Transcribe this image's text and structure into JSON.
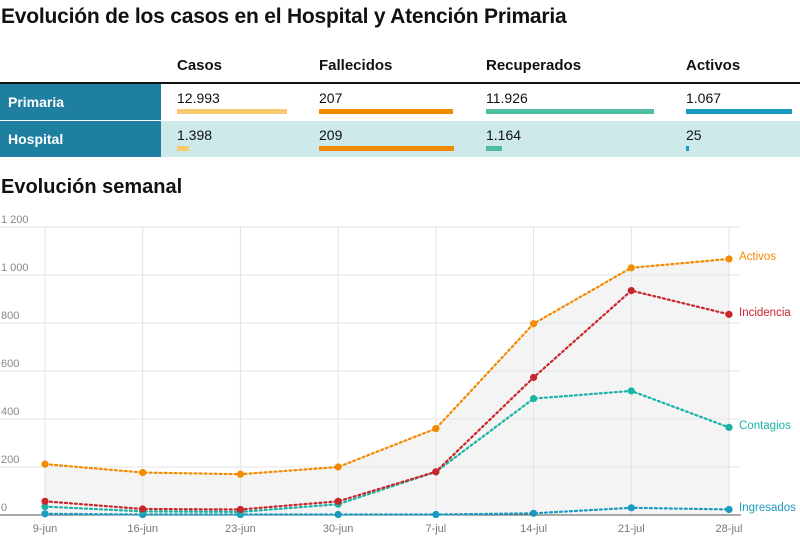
{
  "title": "Evolución de los casos en el Hospital y Atención Primaria",
  "table": {
    "columns": [
      "Casos",
      "Fallecidos",
      "Recuperados",
      "Activos"
    ],
    "column_colors": [
      "#f9c96e",
      "#f28b00",
      "#4dbfa0",
      "#1a9ac0"
    ],
    "rows": [
      {
        "label": "Primaria",
        "values": [
          "12.993",
          "207",
          "11.926",
          "1.067"
        ],
        "numbers": [
          12993,
          207,
          11926,
          1067
        ]
      },
      {
        "label": "Hospital",
        "values": [
          "1.398",
          "209",
          "1.164",
          "25"
        ],
        "numbers": [
          1398,
          209,
          1164,
          25
        ]
      }
    ]
  },
  "subtitle": "Evolución semanal",
  "chart_data": {
    "type": "line",
    "x": [
      "9-jun",
      "16-jun",
      "23-jun",
      "30-jun",
      "7-jul",
      "14-jul",
      "21-jul",
      "28-jul"
    ],
    "ylim": [
      0,
      1200
    ],
    "yticks": [
      0,
      200,
      400,
      600,
      800,
      1000,
      1200
    ],
    "ytick_labels": [
      "0",
      "200",
      "400",
      "600",
      "800",
      "1 000",
      "1 200"
    ],
    "grid": true,
    "series": [
      {
        "name": "Activos",
        "color": "#f28b00",
        "values": [
          212,
          177,
          170,
          200,
          360,
          797,
          1030,
          1067
        ]
      },
      {
        "name": "Incidencia",
        "color": "#c8262b",
        "values": [
          57,
          25,
          23,
          57,
          180,
          573,
          935,
          836
        ]
      },
      {
        "name": "Contagios",
        "color": "#1ab3a6",
        "values": [
          35,
          15,
          13,
          45,
          180,
          485,
          517,
          365
        ]
      },
      {
        "name": "Ingresados",
        "color": "#1a9ac0",
        "values": [
          5,
          2,
          2,
          2,
          2,
          7,
          30,
          23
        ]
      }
    ]
  }
}
